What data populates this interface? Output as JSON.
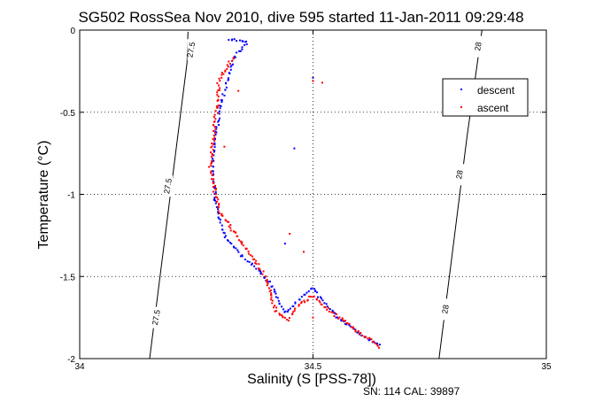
{
  "chart_data": {
    "type": "scatter",
    "title": "SG502 RossSea Nov 2010, dive 595 started 11-Jan-2011 09:29:48",
    "xlabel": "Salinity (S [PSS-78])",
    "ylabel": "Temperature (°C)",
    "xlim": [
      34,
      35
    ],
    "ylim": [
      -2,
      0
    ],
    "x_ticks": [
      "34",
      "34.5",
      "35"
    ],
    "y_ticks": [
      "0",
      "-0.5",
      "-1",
      "-1.5",
      "-2"
    ],
    "grid": "dotted at 34.5 / -0.5 / -1 / -1.5",
    "legend_position": "top-right",
    "footer": "SN: 114  CAL: 39897",
    "density_contours": [
      {
        "value": 27.5,
        "label": "27.5",
        "points": [
          [
            34.15,
            -2.0
          ],
          [
            34.23,
            -0.2
          ],
          [
            34.232,
            -0.01
          ]
        ]
      },
      {
        "value": 28,
        "label": "28",
        "points": [
          [
            34.77,
            -2.0
          ],
          [
            34.83,
            -0.65
          ],
          [
            34.862,
            0.0
          ]
        ]
      }
    ],
    "contour_labels": [
      {
        "text": "27.5",
        "x": 34.24,
        "y": -0.12
      },
      {
        "text": "27.5",
        "x": 34.19,
        "y": -0.95
      },
      {
        "text": "27.5",
        "x": 34.165,
        "y": -1.75
      },
      {
        "text": "28",
        "x": 34.855,
        "y": -0.1
      },
      {
        "text": "28",
        "x": 34.815,
        "y": -0.88
      },
      {
        "text": "28",
        "x": 34.785,
        "y": -1.7
      }
    ],
    "series": [
      {
        "name": "descent",
        "color": "#0000ff",
        "path": [
          [
            34.315,
            -0.06
          ],
          [
            34.335,
            -0.06
          ],
          [
            34.36,
            -0.07
          ],
          [
            34.33,
            -0.17
          ],
          [
            34.32,
            -0.28
          ],
          [
            34.3,
            -0.48
          ],
          [
            34.285,
            -0.8
          ],
          [
            34.29,
            -1.05
          ],
          [
            34.31,
            -1.25
          ],
          [
            34.35,
            -1.38
          ],
          [
            34.38,
            -1.45
          ],
          [
            34.41,
            -1.55
          ],
          [
            34.43,
            -1.67
          ],
          [
            34.44,
            -1.72
          ],
          [
            34.47,
            -1.64
          ],
          [
            34.5,
            -1.57
          ],
          [
            34.52,
            -1.64
          ],
          [
            34.55,
            -1.74
          ],
          [
            34.6,
            -1.85
          ],
          [
            34.63,
            -1.9
          ],
          [
            34.645,
            -1.925
          ]
        ],
        "count": 200,
        "jitter": [
          0.004,
          0.012
        ]
      },
      {
        "name": "ascent",
        "color": "#ff0000",
        "path": [
          [
            34.33,
            -0.16
          ],
          [
            34.3,
            -0.3
          ],
          [
            34.29,
            -0.55
          ],
          [
            34.28,
            -0.85
          ],
          [
            34.3,
            -1.1
          ],
          [
            34.34,
            -1.27
          ],
          [
            34.38,
            -1.42
          ],
          [
            34.4,
            -1.52
          ],
          [
            34.41,
            -1.62
          ],
          [
            34.42,
            -1.72
          ],
          [
            34.445,
            -1.76
          ],
          [
            34.47,
            -1.67
          ],
          [
            34.5,
            -1.62
          ],
          [
            34.54,
            -1.72
          ],
          [
            34.58,
            -1.8
          ],
          [
            34.62,
            -1.88
          ],
          [
            34.645,
            -1.93
          ]
        ],
        "count": 220,
        "jitter": [
          0.006,
          0.015
        ]
      }
    ],
    "outliers": [
      {
        "series": "ascent",
        "x": 34.5,
        "y": -0.31
      },
      {
        "series": "ascent",
        "x": 34.52,
        "y": -0.32
      },
      {
        "series": "descent",
        "x": 34.5,
        "y": -0.29
      },
      {
        "series": "ascent",
        "x": 34.34,
        "y": -0.37
      },
      {
        "series": "ascent",
        "x": 34.31,
        "y": -0.71
      },
      {
        "series": "descent",
        "x": 34.46,
        "y": -0.72
      },
      {
        "series": "ascent",
        "x": 34.45,
        "y": -1.24
      },
      {
        "series": "ascent",
        "x": 34.48,
        "y": -1.35
      },
      {
        "series": "descent",
        "x": 34.44,
        "y": -1.3
      },
      {
        "series": "ascent",
        "x": 34.5,
        "y": -1.75
      }
    ]
  }
}
